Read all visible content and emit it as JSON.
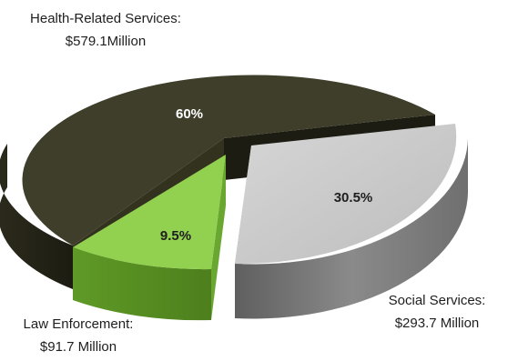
{
  "chart_data": {
    "type": "pie",
    "title": "",
    "slices": [
      {
        "category": "Health-Related Services:",
        "amount": "$579.1Million",
        "value": 579.1,
        "percent_label": "60%",
        "color": "#3f3e2a",
        "label_color": "#ffffff"
      },
      {
        "category": "Social Services:",
        "amount": "$293.7 Million",
        "value": 293.7,
        "percent_label": "30.5%",
        "color": "#c8c8c8",
        "label_color": "#1e1e1e"
      },
      {
        "category": "Law Enforcement:",
        "amount": "$91.7 Million",
        "value": 91.7,
        "percent_label": "9.5%",
        "color": "#92d050",
        "label_color": "#1e1e1e"
      }
    ],
    "style": "3d-exploded"
  }
}
